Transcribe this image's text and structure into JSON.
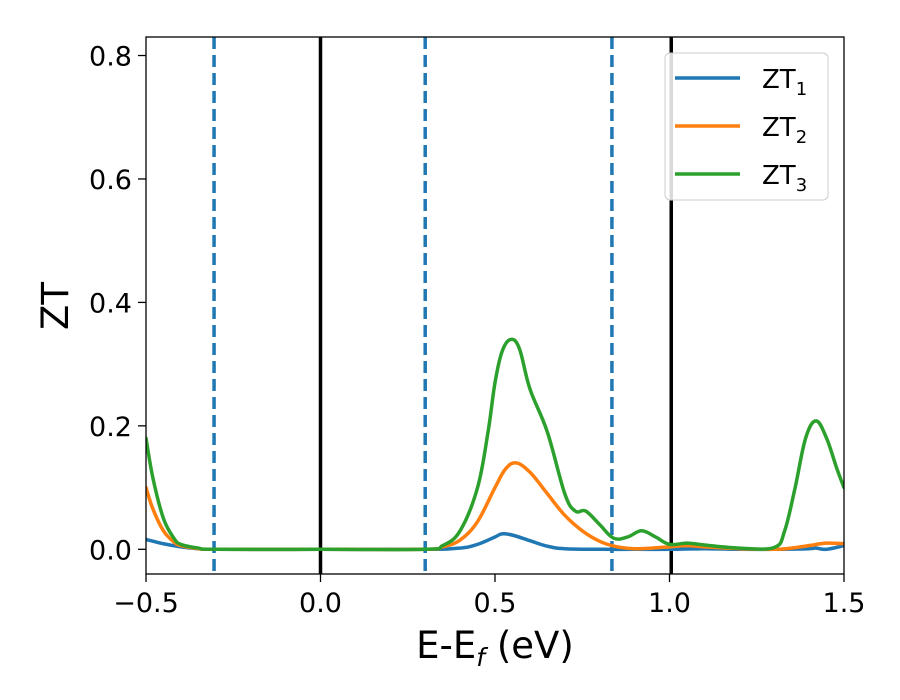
{
  "chart_data": {
    "type": "line",
    "title": "",
    "xlabel": {
      "main": "E-E",
      "sub": "f",
      "unit": " (eV)"
    },
    "ylabel": "ZT",
    "xlim": [
      -0.5,
      1.5
    ],
    "ylim": [
      -0.04,
      0.83
    ],
    "xticks": [
      -0.5,
      0.0,
      0.5,
      1.0,
      1.5
    ],
    "xtick_labels": [
      "−0.5",
      "0.0",
      "0.5",
      "1.0",
      "1.5"
    ],
    "yticks": [
      0.0,
      0.2,
      0.4,
      0.6,
      0.8
    ],
    "ytick_labels": [
      "0.0",
      "0.2",
      "0.4",
      "0.6",
      "0.8"
    ],
    "grid": false,
    "legend_position": "top-right",
    "vlines": [
      {
        "x": -0.305,
        "style": "dashed",
        "color": "#1f77b4"
      },
      {
        "x": 0.0,
        "style": "solid",
        "color": "#000000"
      },
      {
        "x": 0.3,
        "style": "dashed",
        "color": "#1f77b4"
      },
      {
        "x": 0.835,
        "style": "dashed",
        "color": "#1f77b4"
      },
      {
        "x": 1.005,
        "style": "solid",
        "color": "#000000"
      }
    ],
    "series": [
      {
        "name": "ZT",
        "subscript": "1",
        "color": "#1f77b4",
        "x": [
          -0.5,
          -0.45,
          -0.4,
          -0.35,
          -0.3,
          0.0,
          0.3,
          0.4,
          0.45,
          0.5,
          0.52,
          0.55,
          0.6,
          0.65,
          0.7,
          0.8,
          0.9,
          1.0,
          1.1,
          1.2,
          1.3,
          1.4,
          1.42,
          1.45,
          1.5
        ],
        "y": [
          0.016,
          0.009,
          0.004,
          0.001,
          0.0,
          0.0,
          0.0,
          0.002,
          0.008,
          0.02,
          0.025,
          0.023,
          0.014,
          0.005,
          0.001,
          0.0,
          0.0,
          0.0,
          0.001,
          0.0,
          0.0,
          0.001,
          0.002,
          0.0,
          0.006
        ]
      },
      {
        "name": "ZT",
        "subscript": "2",
        "color": "#ff7f0e",
        "x": [
          -0.5,
          -0.48,
          -0.45,
          -0.42,
          -0.4,
          -0.35,
          -0.3,
          0.0,
          0.3,
          0.35,
          0.4,
          0.45,
          0.5,
          0.53,
          0.56,
          0.6,
          0.65,
          0.7,
          0.75,
          0.8,
          0.85,
          0.9,
          0.95,
          1.0,
          1.05,
          1.1,
          1.2,
          1.3,
          1.35,
          1.4,
          1.45,
          1.5
        ],
        "y": [
          0.1,
          0.065,
          0.03,
          0.012,
          0.006,
          0.001,
          0.0,
          0.0,
          0.0,
          0.004,
          0.015,
          0.045,
          0.1,
          0.13,
          0.14,
          0.125,
          0.09,
          0.055,
          0.03,
          0.013,
          0.004,
          0.001,
          0.002,
          0.004,
          0.006,
          0.004,
          0.001,
          0.0,
          0.002,
          0.006,
          0.01,
          0.009
        ]
      },
      {
        "name": "ZT",
        "subscript": "3",
        "color": "#2ca02c",
        "x": [
          -0.5,
          -0.48,
          -0.45,
          -0.42,
          -0.4,
          -0.35,
          -0.3,
          0.0,
          0.3,
          0.35,
          0.4,
          0.45,
          0.48,
          0.5,
          0.52,
          0.545,
          0.57,
          0.6,
          0.65,
          0.7,
          0.73,
          0.76,
          0.8,
          0.84,
          0.88,
          0.92,
          0.96,
          1.0,
          1.05,
          1.1,
          1.2,
          1.3,
          1.33,
          1.36,
          1.39,
          1.42,
          1.45,
          1.48,
          1.5
        ],
        "y": [
          0.18,
          0.115,
          0.05,
          0.018,
          0.008,
          0.002,
          0.0,
          0.0,
          0.0,
          0.006,
          0.03,
          0.1,
          0.19,
          0.27,
          0.32,
          0.34,
          0.325,
          0.26,
          0.19,
          0.09,
          0.062,
          0.062,
          0.04,
          0.018,
          0.02,
          0.03,
          0.02,
          0.008,
          0.01,
          0.007,
          0.002,
          0.003,
          0.03,
          0.1,
          0.18,
          0.208,
          0.18,
          0.13,
          0.1
        ]
      }
    ]
  }
}
